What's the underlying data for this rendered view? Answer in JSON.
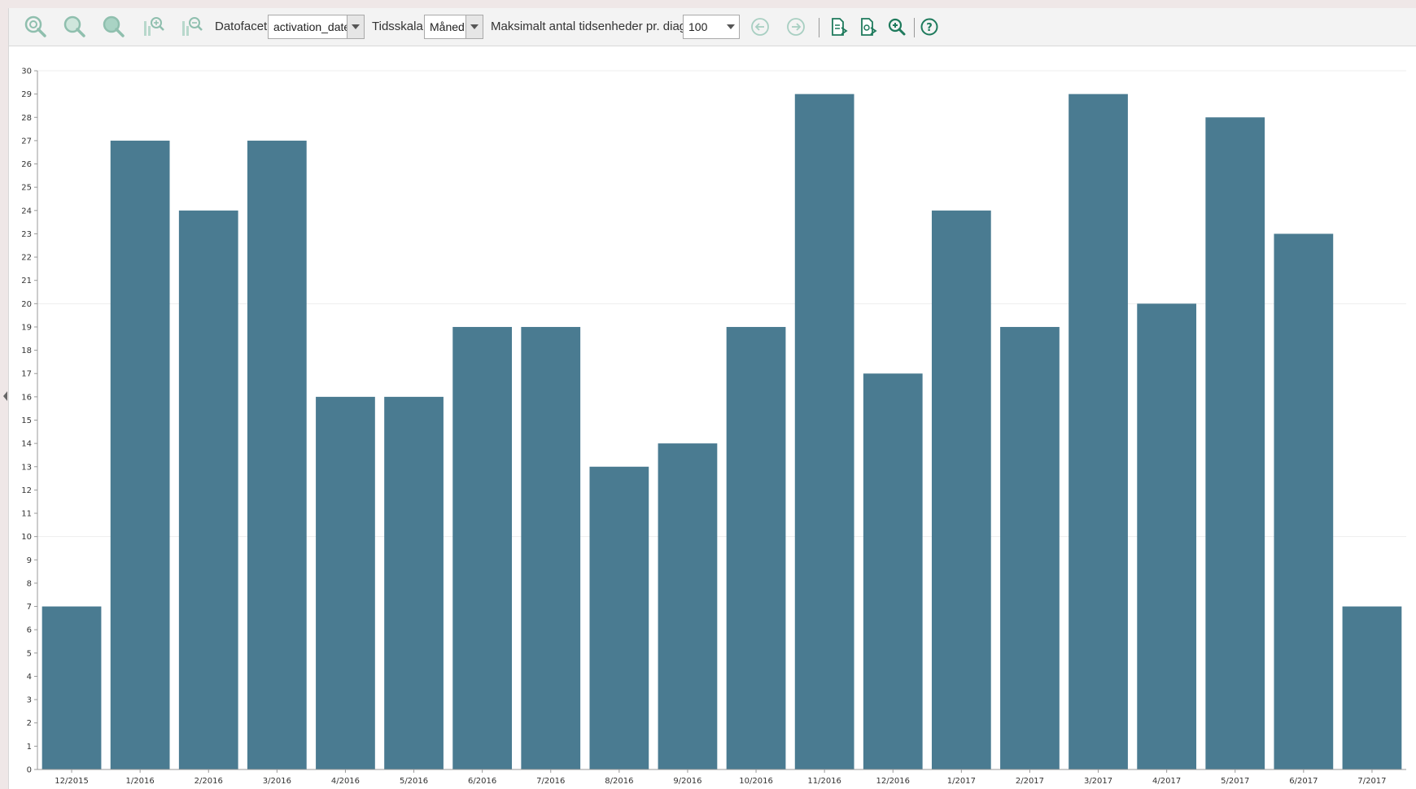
{
  "toolbar": {
    "datofacet_label": "Datofacet:",
    "datofacet_value": "activation_date",
    "tidsskala_label": "Tidsskala:",
    "tidsskala_value": "Måned",
    "maks_label": "Maksimalt antal tidsenheder pr. diagram:",
    "maks_value": "100",
    "icons": [
      "zoom-reset-icon",
      "zoom-in-icon",
      "zoom-out-icon",
      "zoom-in-bar-icon",
      "zoom-out-bar-icon",
      "arrow-left-icon",
      "arrow-right-icon",
      "export-document-icon",
      "export-image-icon",
      "magnify-icon",
      "help-icon"
    ]
  },
  "colors": {
    "bar": "#4a7b91",
    "accent": "#1e7a5c"
  },
  "chart_data": {
    "type": "bar",
    "categories": [
      "12/2015",
      "1/2016",
      "2/2016",
      "3/2016",
      "4/2016",
      "5/2016",
      "6/2016",
      "7/2016",
      "8/2016",
      "9/2016",
      "10/2016",
      "11/2016",
      "12/2016",
      "1/2017",
      "2/2017",
      "3/2017",
      "4/2017",
      "5/2017",
      "6/2017",
      "7/2017"
    ],
    "values": [
      7,
      27,
      24,
      27,
      16,
      16,
      19,
      19,
      13,
      14,
      19,
      29,
      17,
      24,
      19,
      29,
      20,
      28,
      23,
      7
    ],
    "ylim": [
      0,
      30
    ],
    "yticks": [
      "0",
      "1",
      "2",
      "3",
      "4",
      "5",
      "6",
      "7",
      "8",
      "9",
      "10",
      "11",
      "12",
      "13",
      "14",
      "15",
      "16",
      "17",
      "18",
      "19",
      "20",
      "21",
      "22",
      "23",
      "24",
      "25",
      "26",
      "27",
      "28",
      "29",
      "30"
    ],
    "grid_lines": [
      0,
      10,
      20,
      30
    ],
    "title": "",
    "xlabel": "",
    "ylabel": ""
  }
}
